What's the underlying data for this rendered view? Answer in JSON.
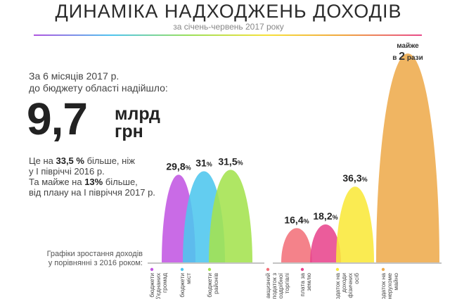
{
  "title": "ДИНАМІКА НАДХОДЖЕНЬ ДОХОДІВ",
  "subtitle": "за січень-червень 2017 року",
  "intro": {
    "line1": "За 6 місяців 2017 р.",
    "line2": "до бюджету області надійшло:"
  },
  "total": {
    "value": "9,7",
    "unit_line1": "млрд",
    "unit_line2": "грн"
  },
  "comparison": {
    "line1_pre": "Це на ",
    "line1_bold": "33,5 %",
    "line1_post": " більше, ніж",
    "line2": "у І півріччі 2016 р.",
    "line3_pre": "Та майже на ",
    "line3_bold": "13%",
    "line3_post": " більше,",
    "line4": "від плану на І півріччя 2017 р."
  },
  "growth_caption": {
    "line1": "Графіки зростання доходів",
    "line2": "у порівнянні з 2016 роком:"
  },
  "chart_data": [
    {
      "type": "area",
      "title": "Графіки зростання доходів у порівнянні з 2016 роком",
      "categories": [
        "бюджети об'єднаних громад",
        "бюджети міст",
        "бюджети районів"
      ],
      "values": [
        29.8,
        31,
        31.5
      ],
      "value_labels": [
        "29,8",
        "31",
        "31,5"
      ],
      "unit": "%",
      "colors": [
        "#c257e3",
        "#4dc6ee",
        "#a4e24e"
      ],
      "ylim": [
        0,
        37
      ]
    },
    {
      "type": "area",
      "categories": [
        "акцизний податок з роздрібної торгівлі",
        "плата за землю",
        "податок на доходи фізичних осіб",
        "податок на нерухоме майно"
      ],
      "values": [
        16.4,
        18.2,
        36.3,
        100
      ],
      "value_labels": [
        "16,4",
        "18,2",
        "36,3",
        ""
      ],
      "unit": "%",
      "colors": [
        "#f2717a",
        "#e8468d",
        "#f9e83a",
        "#eeab4c"
      ],
      "ylim": [
        0,
        125
      ],
      "annotation": {
        "line1": "майже",
        "line2_pre": "в ",
        "line2_big": "2",
        "line2_post": " рази"
      }
    }
  ]
}
